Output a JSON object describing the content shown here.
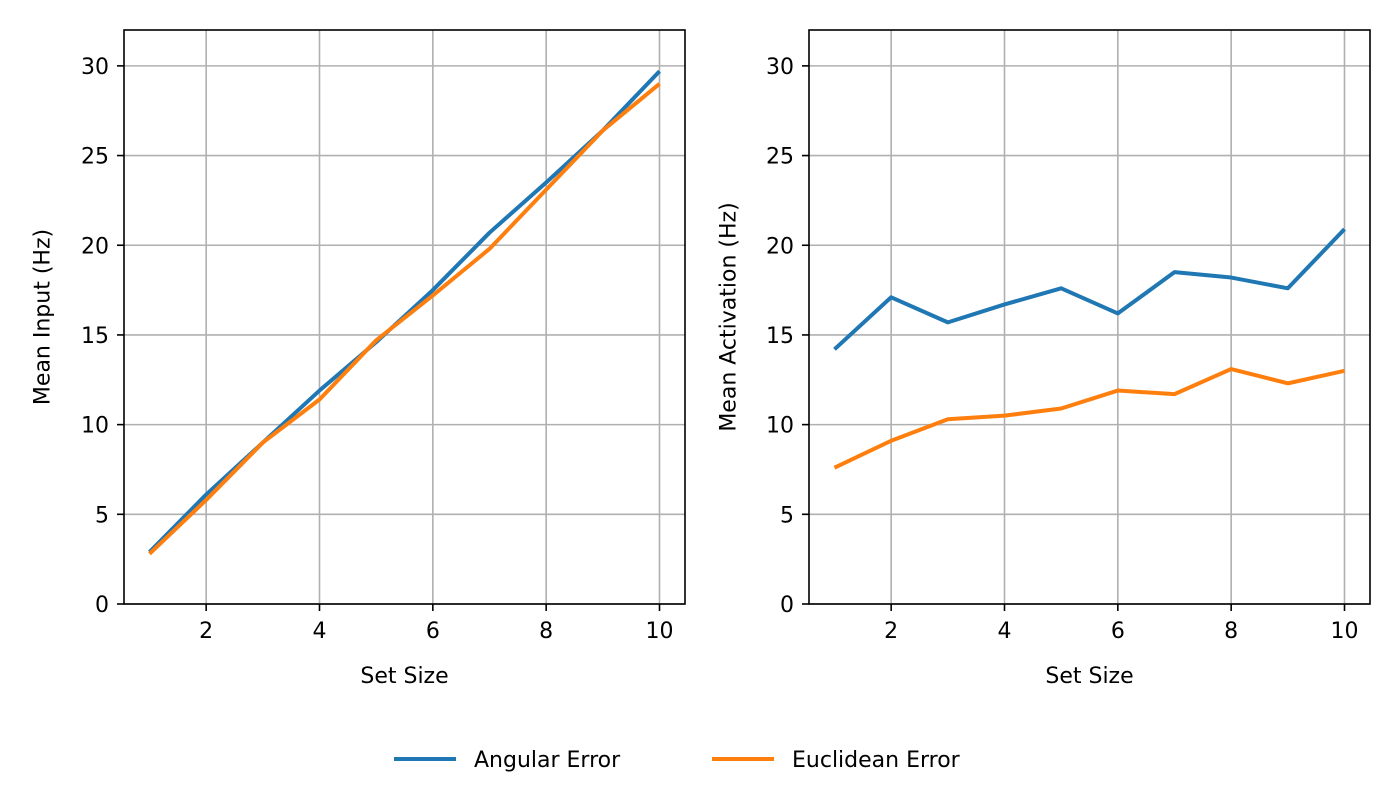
{
  "chart_data": [
    {
      "type": "line",
      "xlabel": "Set Size",
      "ylabel": "Mean Input (Hz)",
      "xlim": [
        0.55,
        10.45
      ],
      "ylim": [
        0,
        32
      ],
      "xticks": [
        2,
        4,
        6,
        8,
        10
      ],
      "yticks": [
        0,
        5,
        10,
        15,
        20,
        25,
        30
      ],
      "grid": true,
      "x": [
        1,
        2,
        3,
        4,
        5,
        6,
        7,
        8,
        9,
        10
      ],
      "series": [
        {
          "name": "Angular Error",
          "color": "#1f77b4",
          "values": [
            2.9,
            6.1,
            9.0,
            11.9,
            14.6,
            17.5,
            20.7,
            23.5,
            26.4,
            29.7
          ]
        },
        {
          "name": "Euclidean Error",
          "color": "#ff7f0e",
          "values": [
            2.8,
            5.8,
            9.0,
            11.4,
            14.7,
            17.2,
            19.8,
            23.1,
            26.4,
            29.0
          ]
        }
      ]
    },
    {
      "type": "line",
      "xlabel": "Set Size",
      "ylabel": "Mean Activation (Hz)",
      "xlim": [
        0.55,
        10.45
      ],
      "ylim": [
        0,
        32
      ],
      "xticks": [
        2,
        4,
        6,
        8,
        10
      ],
      "yticks": [
        0,
        5,
        10,
        15,
        20,
        25,
        30
      ],
      "grid": true,
      "x": [
        1,
        2,
        3,
        4,
        5,
        6,
        7,
        8,
        9,
        10
      ],
      "series": [
        {
          "name": "Angular Error",
          "color": "#1f77b4",
          "values": [
            14.2,
            17.1,
            15.7,
            16.7,
            17.6,
            16.2,
            18.5,
            18.2,
            17.6,
            20.9
          ]
        },
        {
          "name": "Euclidean Error",
          "color": "#ff7f0e",
          "values": [
            7.6,
            9.1,
            10.3,
            10.5,
            10.9,
            11.9,
            11.7,
            13.1,
            12.3,
            13.0
          ]
        }
      ]
    }
  ],
  "legend": {
    "placement": "bottom-center",
    "items": [
      {
        "label": "Angular Error",
        "color": "#1f77b4"
      },
      {
        "label": "Euclidean Error",
        "color": "#ff7f0e"
      }
    ]
  }
}
